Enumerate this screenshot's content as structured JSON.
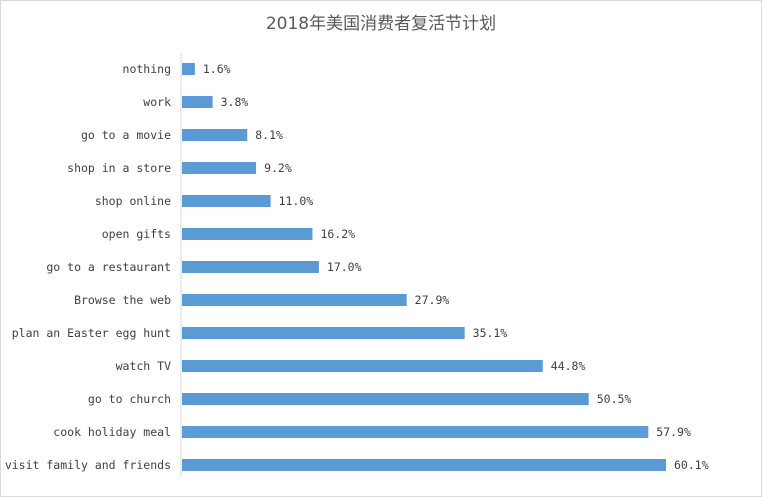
{
  "chart_data": {
    "type": "bar",
    "orientation": "horizontal",
    "title": "2018年美国消费者复活节计划",
    "categories": [
      "nothing",
      "work",
      "go to a movie",
      "shop in a store",
      "shop online",
      "open gifts",
      "go to a restaurant",
      "Browse the web",
      "plan an Easter egg hunt",
      "watch TV",
      "go to church",
      "cook holiday meal",
      "visit family and friends"
    ],
    "values": [
      1.6,
      3.8,
      8.1,
      9.2,
      11.0,
      16.2,
      17.0,
      27.9,
      35.1,
      44.8,
      50.5,
      57.9,
      60.1
    ],
    "data_labels": [
      "1.6%",
      "3.8%",
      "8.1%",
      "9.2%",
      "11.0%",
      "16.2%",
      "17.0%",
      "27.9%",
      "35.1%",
      "44.8%",
      "50.5%",
      "57.9%",
      "60.1%"
    ],
    "xlabel": "",
    "ylabel": "",
    "grid": false,
    "legend": "none",
    "bar_color": "#5b9bd5"
  }
}
